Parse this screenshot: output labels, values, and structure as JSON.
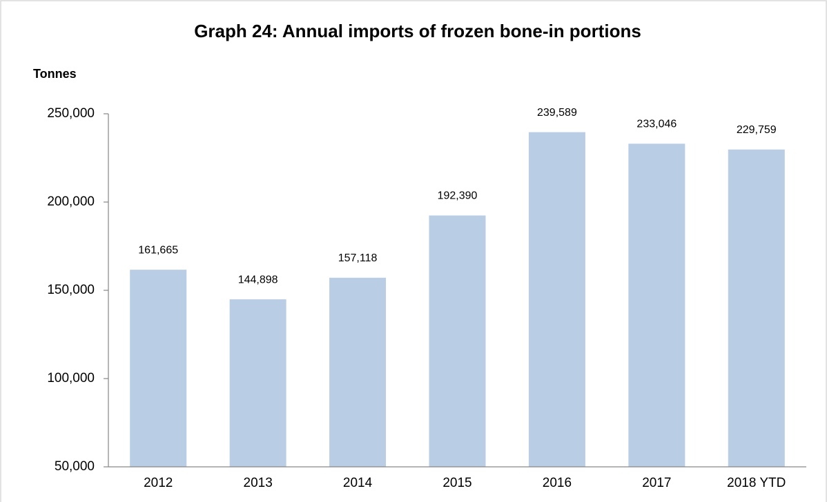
{
  "chart_data": {
    "type": "bar",
    "title": "Graph 24: Annual imports of frozen bone-in portions",
    "y_label": "Tonnes",
    "categories": [
      "2012",
      "2013",
      "2014",
      "2015",
      "2016",
      "2017",
      "2018 YTD"
    ],
    "values": [
      161665,
      144898,
      157118,
      192390,
      239589,
      233046,
      229759
    ],
    "value_labels": [
      "161,665",
      "144,898",
      "157,118",
      "192,390",
      "239,589",
      "233,046",
      "229,759"
    ],
    "color": "#b9cde5",
    "ylim": [
      50000,
      250000
    ],
    "yticks": [
      {
        "value": 50000,
        "label": "50,000"
      },
      {
        "value": 100000,
        "label": "100,000"
      },
      {
        "value": 150000,
        "label": "150,000"
      },
      {
        "value": 200000,
        "label": "200,000"
      },
      {
        "value": 250000,
        "label": "250,000"
      }
    ],
    "grid": false
  }
}
